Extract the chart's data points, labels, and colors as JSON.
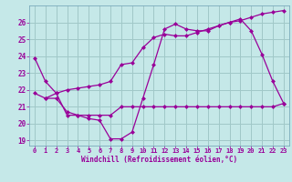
{
  "xlabel": "Windchill (Refroidissement éolien,°C)",
  "background_color": "#c5e8e8",
  "grid_color": "#a0c8c8",
  "line_color": "#990099",
  "xlim": [
    -0.5,
    23.5
  ],
  "ylim": [
    18.7,
    27.0
  ],
  "yticks": [
    19,
    20,
    21,
    22,
    23,
    24,
    25,
    26
  ],
  "xticks": [
    0,
    1,
    2,
    3,
    4,
    5,
    6,
    7,
    8,
    9,
    10,
    11,
    12,
    13,
    14,
    15,
    16,
    17,
    18,
    19,
    20,
    21,
    22,
    23
  ],
  "line1_x": [
    0,
    1,
    2,
    3,
    4,
    5,
    6,
    7,
    8,
    9,
    10,
    11,
    12,
    13,
    14,
    15,
    16,
    17,
    18,
    19,
    20,
    21,
    22,
    23
  ],
  "line1_y": [
    23.9,
    22.5,
    21.8,
    20.5,
    20.5,
    20.3,
    20.2,
    19.1,
    19.1,
    19.5,
    21.5,
    23.5,
    25.6,
    25.9,
    25.6,
    25.5,
    25.5,
    25.8,
    26.0,
    26.2,
    25.5,
    24.1,
    22.5,
    21.2
  ],
  "line2_x": [
    0,
    1,
    2,
    3,
    4,
    5,
    6,
    7,
    8,
    9,
    10,
    11,
    12,
    13,
    14,
    15,
    16,
    17,
    18,
    19,
    20,
    21,
    22,
    23
  ],
  "line2_y": [
    21.8,
    21.5,
    21.8,
    22.0,
    22.1,
    22.2,
    22.3,
    22.5,
    23.5,
    23.6,
    24.5,
    25.1,
    25.3,
    25.2,
    25.2,
    25.4,
    25.6,
    25.8,
    26.0,
    26.1,
    26.3,
    26.5,
    26.6,
    26.7
  ],
  "line3_x": [
    1,
    2,
    3,
    4,
    5,
    6,
    7,
    8,
    9,
    10,
    11,
    12,
    13,
    14,
    15,
    16,
    17,
    18,
    19,
    20,
    21,
    22,
    23
  ],
  "line3_y": [
    21.5,
    21.5,
    20.7,
    20.5,
    20.5,
    20.5,
    20.5,
    21.0,
    21.0,
    21.0,
    21.0,
    21.0,
    21.0,
    21.0,
    21.0,
    21.0,
    21.0,
    21.0,
    21.0,
    21.0,
    21.0,
    21.0,
    21.2
  ]
}
